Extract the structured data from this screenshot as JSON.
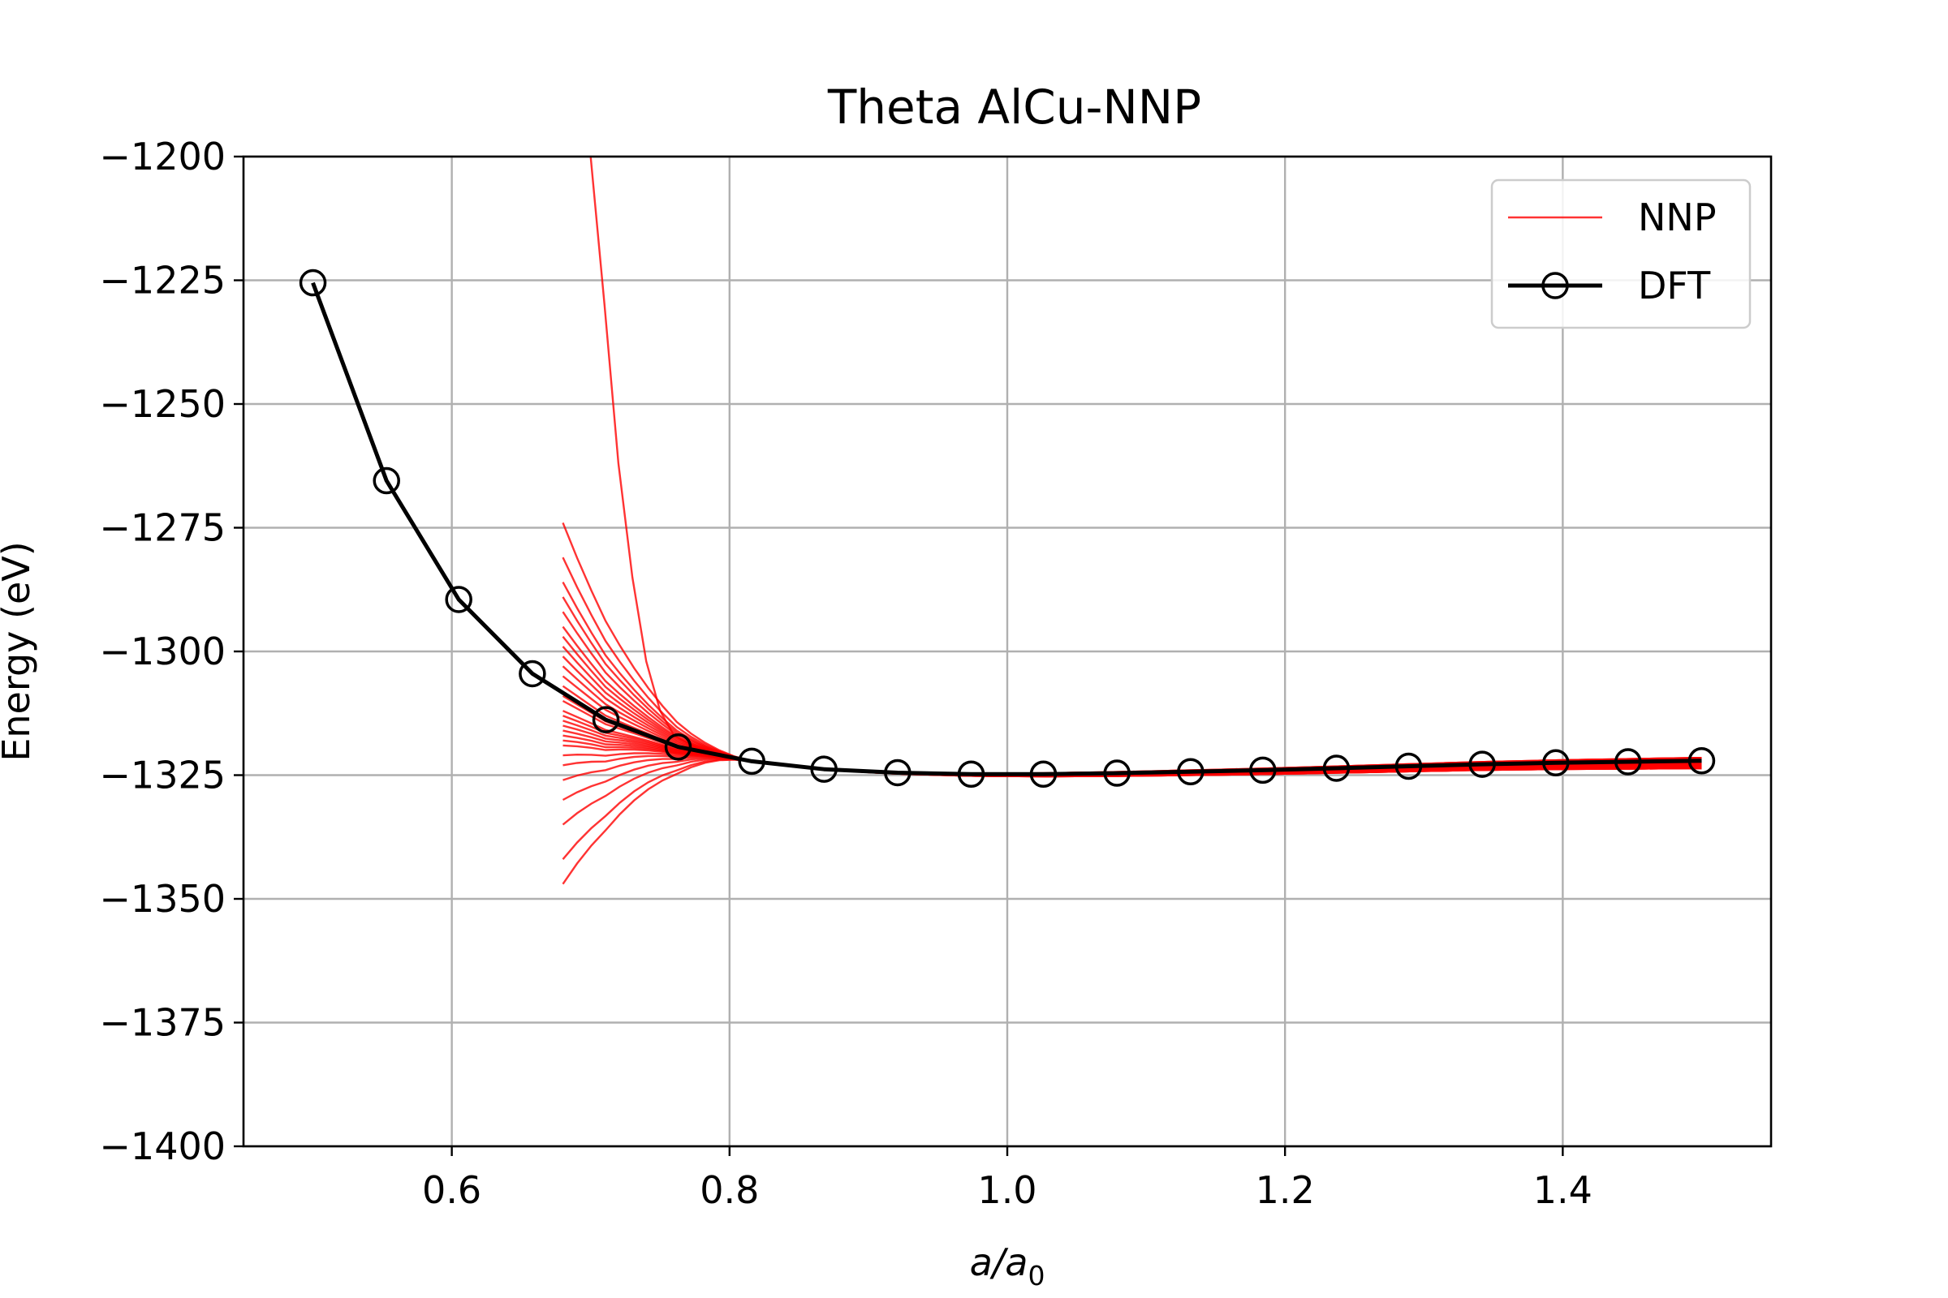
{
  "chart_data": {
    "type": "line",
    "title": "Theta AlCu-NNP",
    "xlabel_italic_base": "a/a",
    "xlabel_subscript": "0",
    "ylabel": "Energy (eV)",
    "xlim": [
      0.45,
      1.55
    ],
    "ylim": [
      -1400,
      -1200
    ],
    "x_ticks": [
      0.6,
      0.8,
      1.0,
      1.2,
      1.4
    ],
    "x_tick_labels": [
      "0.6",
      "0.8",
      "1.0",
      "1.2",
      "1.4"
    ],
    "y_ticks": [
      -1200,
      -1225,
      -1250,
      -1275,
      -1300,
      -1325,
      -1350,
      -1375,
      -1400
    ],
    "y_tick_labels": [
      "−1200",
      "−1225",
      "−1250",
      "−1275",
      "−1300",
      "−1325",
      "−1350",
      "−1375",
      "−1400"
    ],
    "grid": true,
    "legend_position": "top-right",
    "legend": [
      {
        "label": "NNP",
        "color": "#ff0000",
        "style": "thin-line"
      },
      {
        "label": "DFT",
        "color": "#000000",
        "style": "line-open-circle"
      }
    ],
    "dft": {
      "name": "DFT",
      "color": "#000000",
      "x": [
        0.5,
        0.553,
        0.605,
        0.658,
        0.711,
        0.763,
        0.816,
        0.868,
        0.921,
        0.974,
        1.026,
        1.079,
        1.132,
        1.184,
        1.237,
        1.289,
        1.342,
        1.395,
        1.447,
        1.5
      ],
      "y": [
        -1225.5,
        -1265.5,
        -1289.5,
        -1304.5,
        -1313.8,
        -1319.3,
        -1322.2,
        -1323.8,
        -1324.5,
        -1324.8,
        -1324.8,
        -1324.6,
        -1324.3,
        -1324.0,
        -1323.6,
        -1323.2,
        -1322.8,
        -1322.5,
        -1322.3,
        -1322.1
      ]
    },
    "nnp": {
      "name": "NNP",
      "color": "#ff0000",
      "x_start": 0.68,
      "x_converge": 0.82,
      "x_end": 1.5,
      "steep_branch": {
        "x": [
          0.7,
          0.71,
          0.72,
          0.73,
          0.74,
          0.75,
          0.76,
          0.78,
          0.8,
          0.82
        ],
        "y": [
          -1200,
          -1230,
          -1262,
          -1285,
          -1302,
          -1312,
          -1317,
          -1320,
          -1321.6,
          -1322.2
        ]
      },
      "start_energies": [
        -1274,
        -1281,
        -1286,
        -1289,
        -1292,
        -1295,
        -1297,
        -1299,
        -1301,
        -1303,
        -1305,
        -1307,
        -1309,
        -1310,
        -1312,
        -1313,
        -1314,
        -1315,
        -1316,
        -1317,
        -1318,
        -1319,
        -1321,
        -1323,
        -1326,
        -1330,
        -1335,
        -1342,
        -1347
      ],
      "end_offsets": [
        -1.5,
        -1.1,
        -0.8,
        -0.5,
        -0.3,
        0.0,
        0.3,
        0.6
      ]
    }
  }
}
